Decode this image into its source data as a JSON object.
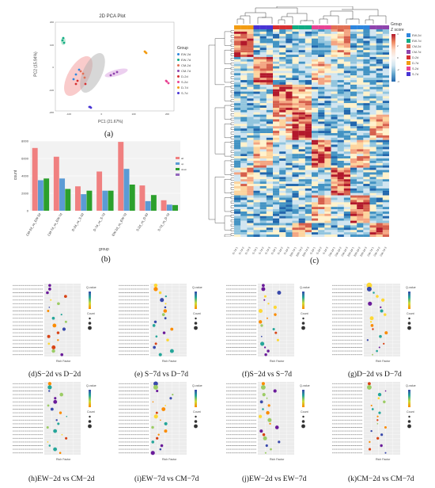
{
  "panel_a": {
    "title": "2D PCA Plot",
    "xlabel": "PC1 (21.67%)",
    "ylabel": "PC2 (15.94%)",
    "legend_title": "Group",
    "groups": [
      {
        "name": "EW-2d",
        "color": "#2e86de"
      },
      {
        "name": "EW-7d",
        "color": "#10ac84"
      },
      {
        "name": "CM-2d",
        "color": "#e17055"
      },
      {
        "name": "CM-7d",
        "color": "#8e44ad"
      },
      {
        "name": "D-2d",
        "color": "#d63031"
      },
      {
        "name": "S-2d",
        "color": "#e84393"
      },
      {
        "name": "D-7d",
        "color": "#f39c12"
      },
      {
        "name": "S-7d",
        "color": "#4834d4"
      }
    ],
    "x_ticks": [
      "-100",
      "0",
      "100",
      "200"
    ],
    "y_ticks": [
      "200",
      "100",
      "0",
      "-100",
      "-200"
    ],
    "caption": "(a)"
  },
  "panel_b": {
    "caption": "(b)",
    "chart_data": {
      "type": "bar",
      "categories": [
        "CM-2d_vs_EW-2d",
        "CM-7d_vs_EW-7d",
        "D-2d_vs_S-2d",
        "D-7d_vs_S-7d",
        "EW-2d_vs_EW-7d",
        "S-2d_vs_D-2d",
        "S-7d_vs_D-7d"
      ],
      "series": [
        {
          "name": "all",
          "color": "#f08080",
          "values": [
            7200,
            6200,
            2800,
            4500,
            7900,
            2900,
            1200
          ]
        },
        {
          "name": "up",
          "color": "#5b9bd5",
          "values": [
            3500,
            3700,
            1900,
            2300,
            4800,
            1100,
            700
          ]
        },
        {
          "name": "down",
          "color": "#2ca02c",
          "values": [
            3700,
            2500,
            2300,
            2300,
            3000,
            1800,
            650
          ]
        },
        {
          "name": "",
          "color": "#9467bd",
          "values": [
            0,
            0,
            0,
            0,
            0,
            0,
            0
          ]
        }
      ],
      "ylabel": "count",
      "xlabel": "group",
      "ylim": [
        0,
        8000
      ],
      "y_ticks": [
        "8000",
        "6000",
        "4000",
        "2000",
        "0"
      ]
    }
  },
  "panel_c": {
    "caption": "(c)",
    "legend_title_group": "Group",
    "legend_title_z": "Z score",
    "z_ticks": [
      "4",
      "2",
      "0",
      "-2",
      "-4"
    ],
    "group_legend": [
      {
        "name": "EW-2d",
        "color": "#2e86de"
      },
      {
        "name": "EW-7d",
        "color": "#10ac84"
      },
      {
        "name": "CM-2d",
        "color": "#e17055"
      },
      {
        "name": "CM-7d",
        "color": "#8e44ad"
      },
      {
        "name": "D-2d",
        "color": "#d63031"
      },
      {
        "name": "D-7d",
        "color": "#f39c12"
      },
      {
        "name": "S-2d",
        "color": "#e84393"
      },
      {
        "name": "S-7d",
        "color": "#4834d4"
      }
    ],
    "col_labels": [
      "D-7d-1",
      "D-7d-2",
      "D-7d-3",
      "S-7d-1",
      "S-7d-2",
      "S-7d-3",
      "D-2d-1",
      "D-2d-2",
      "D-2d-3",
      "EW-7d-1",
      "EW-7d-2",
      "EW-7d-3",
      "S-2d-1",
      "S-2d-2",
      "S-2d-3",
      "CM-2d-1",
      "CM-2d-2",
      "CM-2d-3",
      "EW-2d-1",
      "EW-2d-2",
      "EW-2d-3",
      "CM-7d-1",
      "CM-7d-2",
      "CM-7d-3"
    ]
  },
  "enrichment_panels": [
    {
      "caption": "(d)S−2d vs D−2d"
    },
    {
      "caption": "(e) S−7d vs D−7d"
    },
    {
      "caption": "(f)S−2d vs S−7d"
    },
    {
      "caption": "(g)D−2d vs D−7d"
    },
    {
      "caption": "(h)EW−2d vs CM−2d"
    },
    {
      "caption": "(i)EW−7d vs CM−7d"
    },
    {
      "caption": "(j)EW−2d vs EW−7d"
    },
    {
      "caption": "(k)CM−2d vs CM−7d"
    }
  ],
  "enrichment_common": {
    "xlabel": "Rich Factor",
    "qvalue_label": "Q-value",
    "count_label": "Count"
  }
}
